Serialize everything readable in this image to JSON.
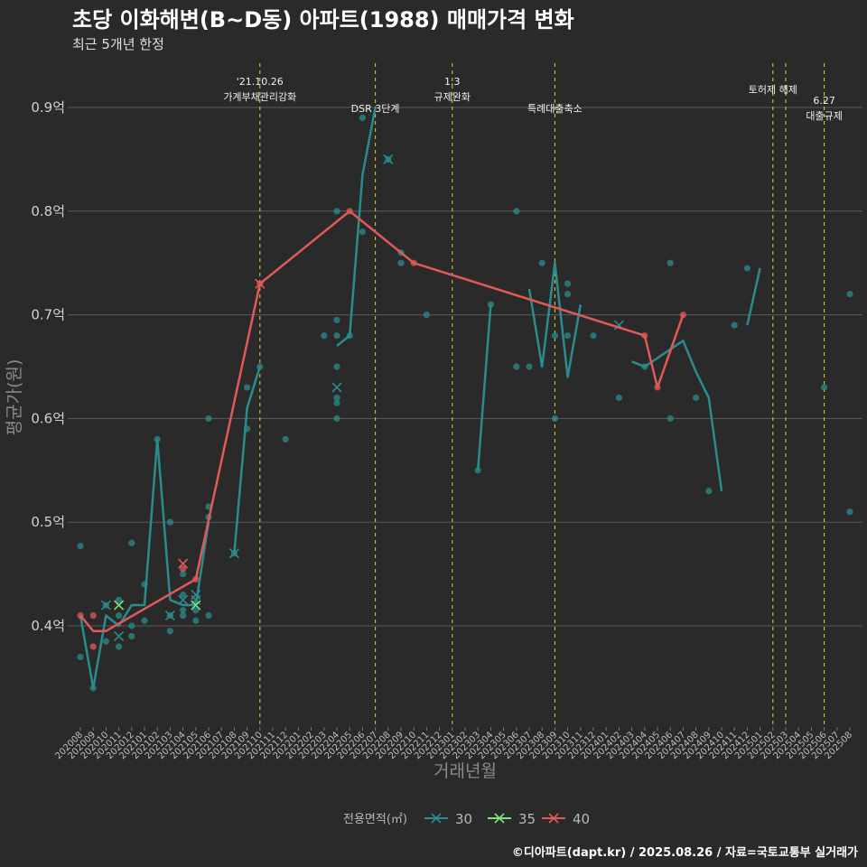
{
  "title": "초당 이화해변(B~D동) 아파트(1988) 매매가격 변화",
  "subtitle": "최근 5개년 한정",
  "caption": "©디아파트(dapt.kr) / 2025.08.26 / 자료=국토교통부 실거래가",
  "chart_data": {
    "type": "line",
    "xlabel": "거래년월",
    "ylabel": "평균가(원)",
    "ylim": [
      0.315,
      0.945
    ],
    "y_ticks": [
      {
        "value": 0.4,
        "label": "0.4억"
      },
      {
        "value": 0.5,
        "label": "0.5억"
      },
      {
        "value": 0.6,
        "label": "0.6억"
      },
      {
        "value": 0.7,
        "label": "0.7억"
      },
      {
        "value": 0.8,
        "label": "0.8억"
      },
      {
        "value": 0.9,
        "label": "0.9억"
      }
    ],
    "x_categories": [
      "202008",
      "202009",
      "202010",
      "202011",
      "202012",
      "202101",
      "202102",
      "202103",
      "202104",
      "202105",
      "202106",
      "202107",
      "202108",
      "202109",
      "202110",
      "202111",
      "202112",
      "202201",
      "202202",
      "202203",
      "202204",
      "202205",
      "202206",
      "202207",
      "202208",
      "202209",
      "202210",
      "202211",
      "202212",
      "202301",
      "202302",
      "202303",
      "202304",
      "202305",
      "202306",
      "202307",
      "202308",
      "202309",
      "202310",
      "202311",
      "202312",
      "202401",
      "202402",
      "202403",
      "202404",
      "202405",
      "202406",
      "202407",
      "202408",
      "202409",
      "202410",
      "202411",
      "202412",
      "202501",
      "202502",
      "202503",
      "202504",
      "202505",
      "202506",
      "202507",
      "202508"
    ],
    "events": [
      {
        "x": "202110",
        "lines": [
          "'21.10.26",
          "가계부채관리강화"
        ]
      },
      {
        "x": "202207",
        "lines": [
          "DSR 3단계"
        ]
      },
      {
        "x": "202301",
        "lines": [
          "1.3",
          "규제완화"
        ]
      },
      {
        "x": "202309",
        "lines": [
          "특례대출축소"
        ]
      },
      {
        "x": "202502",
        "lines": [
          "토허제 해제"
        ]
      },
      {
        "x": "202503",
        "lines": []
      },
      {
        "x": "202506",
        "lines": [
          "6.27",
          "대출규제"
        ]
      }
    ],
    "legend": {
      "title": "전용면적(㎡)",
      "position": "bottom",
      "items": [
        {
          "name": "30",
          "color": "#2a8c8c"
        },
        {
          "name": "35",
          "color": "#7fe07f"
        },
        {
          "name": "40",
          "color": "#e05a5a"
        }
      ]
    },
    "series": [
      {
        "name": "30",
        "color": "#2a8c8c",
        "line": [
          [
            [
              "202008",
              0.41
            ],
            [
              "202009",
              0.34
            ],
            [
              "202010",
              0.41
            ],
            [
              "202011",
              0.4
            ],
            [
              "202012",
              0.42
            ],
            [
              "202101",
              0.42
            ],
            [
              "202102",
              0.58
            ],
            [
              "202103",
              0.425
            ],
            [
              "202104",
              0.42
            ],
            [
              "202105",
              0.42
            ],
            [
              "202106",
              0.5
            ]
          ],
          [
            [
              "202108",
              0.47
            ],
            [
              "202109",
              0.61
            ],
            [
              "202110",
              0.65
            ]
          ],
          [
            [
              "202204",
              0.67
            ],
            [
              "202205",
              0.68
            ],
            [
              "202206",
              0.835
            ],
            [
              "202207",
              0.9
            ]
          ],
          [
            [
              "202303",
              0.55
            ],
            [
              "202304",
              0.71
            ]
          ],
          [
            [
              "202307",
              0.725
            ],
            [
              "202308",
              0.65
            ],
            [
              "202309",
              0.75
            ],
            [
              "202310",
              0.64
            ],
            [
              "202311",
              0.71
            ]
          ],
          [
            [
              "202403",
              0.655
            ],
            [
              "202404",
              0.65
            ],
            [
              "202407",
              0.675
            ],
            [
              "202408",
              0.645
            ],
            [
              "202409",
              0.62
            ],
            [
              "202410",
              0.53
            ]
          ],
          [
            [
              "202412",
              0.69
            ],
            [
              "202501",
              0.745
            ]
          ]
        ],
        "points": [
          [
            "202008",
            0.477
          ],
          [
            "202008",
            0.37
          ],
          [
            "202009",
            0.34
          ],
          [
            "202010",
            0.385
          ],
          [
            "202010",
            0.42
          ],
          [
            "202011",
            0.38
          ],
          [
            "202011",
            0.425
          ],
          [
            "202011",
            0.41
          ],
          [
            "202012",
            0.48
          ],
          [
            "202012",
            0.4
          ],
          [
            "202012",
            0.39
          ],
          [
            "202101",
            0.44
          ],
          [
            "202101",
            0.405
          ],
          [
            "202102",
            0.58
          ],
          [
            "202103",
            0.5
          ],
          [
            "202103",
            0.395
          ],
          [
            "202103",
            0.41
          ],
          [
            "202104",
            0.45
          ],
          [
            "202104",
            0.43
          ],
          [
            "202104",
            0.415
          ],
          [
            "202104",
            0.41
          ],
          [
            "202105",
            0.415
          ],
          [
            "202105",
            0.405
          ],
          [
            "202106",
            0.6
          ],
          [
            "202106",
            0.515
          ],
          [
            "202106",
            0.505
          ],
          [
            "202106",
            0.41
          ],
          [
            "202108",
            0.47
          ],
          [
            "202109",
            0.63
          ],
          [
            "202109",
            0.59
          ],
          [
            "202110",
            0.65
          ],
          [
            "202112",
            0.58
          ],
          [
            "202203",
            0.68
          ],
          [
            "202204",
            0.8
          ],
          [
            "202204",
            0.695
          ],
          [
            "202204",
            0.68
          ],
          [
            "202204",
            0.65
          ],
          [
            "202204",
            0.62
          ],
          [
            "202204",
            0.615
          ],
          [
            "202204",
            0.6
          ],
          [
            "202205",
            0.68
          ],
          [
            "202206",
            0.89
          ],
          [
            "202206",
            0.78
          ],
          [
            "202208",
            0.85
          ],
          [
            "202209",
            0.76
          ],
          [
            "202209",
            0.75
          ],
          [
            "202211",
            0.7
          ],
          [
            "202303",
            0.55
          ],
          [
            "202304",
            0.71
          ],
          [
            "202306",
            0.8
          ],
          [
            "202306",
            0.65
          ],
          [
            "202307",
            0.65
          ],
          [
            "202308",
            0.75
          ],
          [
            "202309",
            0.68
          ],
          [
            "202309",
            0.6
          ],
          [
            "202310",
            0.73
          ],
          [
            "202310",
            0.72
          ],
          [
            "202310",
            0.68
          ],
          [
            "202312",
            0.68
          ],
          [
            "202402",
            0.62
          ],
          [
            "202404",
            0.65
          ],
          [
            "202406",
            0.75
          ],
          [
            "202406",
            0.6
          ],
          [
            "202408",
            0.62
          ],
          [
            "202409",
            0.53
          ],
          [
            "202411",
            0.69
          ],
          [
            "202412",
            0.745
          ],
          [
            "202506",
            0.63
          ],
          [
            "202508",
            0.72
          ],
          [
            "202508",
            0.51
          ]
        ],
        "markers": [
          [
            "202010",
            0.42
          ],
          [
            "202011",
            0.39
          ],
          [
            "202103",
            0.41
          ],
          [
            "202104",
            0.425
          ],
          [
            "202105",
            0.43
          ],
          [
            "202105",
            0.425
          ],
          [
            "202108",
            0.47
          ],
          [
            "202204",
            0.63
          ],
          [
            "202208",
            0.85
          ],
          [
            "202402",
            0.69
          ]
        ]
      },
      {
        "name": "35",
        "color": "#7fe07f",
        "line": [],
        "points": [],
        "markers": [
          [
            "202011",
            0.42
          ],
          [
            "202105",
            0.42
          ]
        ]
      },
      {
        "name": "40",
        "color": "#e05a5a",
        "line": [
          [
            [
              "202008",
              0.41
            ],
            [
              "202009",
              0.395
            ],
            [
              "202010",
              0.395
            ],
            [
              "202105",
              0.445
            ],
            [
              "202110",
              0.73
            ],
            [
              "202205",
              0.8
            ],
            [
              "202210",
              0.75
            ],
            [
              "202404",
              0.68
            ],
            [
              "202405",
              0.63
            ],
            [
              "202407",
              0.7
            ]
          ]
        ],
        "points": [
          [
            "202008",
            0.41
          ],
          [
            "202009",
            0.41
          ],
          [
            "202009",
            0.38
          ],
          [
            "202104",
            0.455
          ],
          [
            "202105",
            0.445
          ],
          [
            "202110",
            0.73
          ],
          [
            "202205",
            0.8
          ],
          [
            "202210",
            0.75
          ],
          [
            "202404",
            0.68
          ],
          [
            "202405",
            0.63
          ],
          [
            "202407",
            0.7
          ]
        ],
        "markers": [
          [
            "202104",
            0.46
          ],
          [
            "202110",
            0.73
          ]
        ]
      }
    ]
  }
}
